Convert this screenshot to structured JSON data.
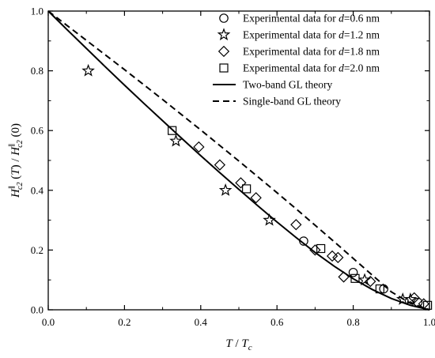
{
  "chart_data": {
    "type": "scatter",
    "xlim": [
      0.0,
      1.0
    ],
    "ylim": [
      0.0,
      1.0
    ],
    "x_ticks": [
      "0.0",
      "0.2",
      "0.4",
      "0.6",
      "0.8",
      "1.0"
    ],
    "y_ticks": [
      "0.0",
      "0.2",
      "0.4",
      "0.6",
      "0.8",
      "1.0"
    ],
    "xlabel_parts": [
      "T",
      " / ",
      "T",
      "c"
    ],
    "ylabel_parts": [
      "H",
      "∥",
      "c2",
      " (",
      "T",
      ") / ",
      "H",
      "∥",
      "c2",
      " (0)"
    ],
    "grid": false,
    "legend_position": "top-right",
    "legend": {
      "series_prefix": "Experimental data for ",
      "series_var": "d",
      "series_eq": "=",
      "line_labels": [
        "Two-band GL theory",
        "Single-band GL theory"
      ]
    },
    "series": [
      {
        "value_label": "0.6 nm",
        "marker": "circle",
        "points": [
          [
            0.67,
            0.23
          ],
          [
            0.8,
            0.125
          ],
          [
            0.88,
            0.07
          ],
          [
            0.97,
            0.025
          ]
        ]
      },
      {
        "value_label": "1.2 nm",
        "marker": "star",
        "points": [
          [
            0.105,
            0.8
          ],
          [
            0.335,
            0.565
          ],
          [
            0.465,
            0.4
          ],
          [
            0.58,
            0.3
          ],
          [
            0.83,
            0.1
          ],
          [
            0.93,
            0.035
          ],
          [
            0.95,
            0.035
          ]
        ]
      },
      {
        "value_label": "1.8 nm",
        "marker": "diamond",
        "points": [
          [
            0.395,
            0.545
          ],
          [
            0.45,
            0.485
          ],
          [
            0.505,
            0.425
          ],
          [
            0.545,
            0.375
          ],
          [
            0.65,
            0.285
          ],
          [
            0.7,
            0.2
          ],
          [
            0.745,
            0.18
          ],
          [
            0.76,
            0.175
          ],
          [
            0.775,
            0.11
          ],
          [
            0.845,
            0.095
          ],
          [
            0.96,
            0.04
          ],
          [
            0.985,
            0.02
          ]
        ]
      },
      {
        "value_label": "2.0 nm",
        "marker": "square",
        "points": [
          [
            0.325,
            0.6
          ],
          [
            0.52,
            0.405
          ],
          [
            0.715,
            0.205
          ],
          [
            0.805,
            0.105
          ],
          [
            0.87,
            0.07
          ],
          [
            0.995,
            0.015
          ]
        ]
      }
    ],
    "lines": [
      {
        "style": "solid",
        "x": [
          0.0,
          0.05,
          0.1,
          0.15,
          0.2,
          0.25,
          0.3,
          0.35,
          0.4,
          0.45,
          0.5,
          0.55,
          0.6,
          0.65,
          0.7,
          0.75,
          0.8,
          0.85,
          0.9,
          0.95,
          1.0
        ],
        "y": [
          1.0,
          0.937,
          0.875,
          0.813,
          0.752,
          0.692,
          0.633,
          0.574,
          0.516,
          0.459,
          0.403,
          0.348,
          0.294,
          0.242,
          0.192,
          0.146,
          0.104,
          0.068,
          0.038,
          0.015,
          0.0
        ]
      },
      {
        "style": "dashed",
        "x": [
          0.0,
          0.05,
          0.1,
          0.15,
          0.2,
          0.25,
          0.3,
          0.35,
          0.4,
          0.45,
          0.5,
          0.55,
          0.6,
          0.65,
          0.7,
          0.75,
          0.8,
          0.85,
          0.9,
          0.95,
          1.0
        ],
        "y": [
          1.0,
          0.951,
          0.902,
          0.853,
          0.804,
          0.754,
          0.704,
          0.653,
          0.602,
          0.55,
          0.498,
          0.445,
          0.392,
          0.338,
          0.283,
          0.228,
          0.172,
          0.116,
          0.06,
          0.022,
          0.0
        ]
      }
    ]
  }
}
